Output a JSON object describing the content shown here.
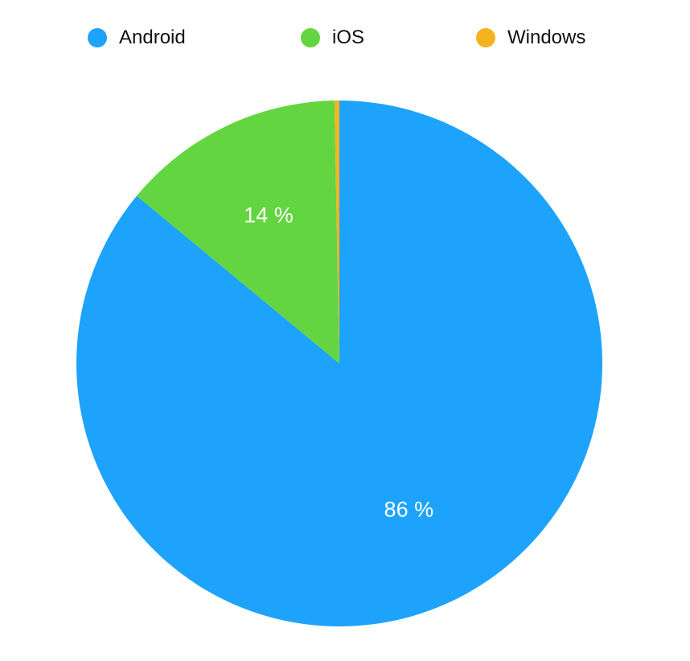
{
  "chart_data": {
    "type": "pie",
    "categories": [
      "Android",
      "iOS",
      "Windows"
    ],
    "values": [
      86,
      13.7,
      0.3
    ],
    "labels": [
      "86 %",
      "14 %",
      ""
    ],
    "colors": [
      "#1ea3fd",
      "#63d541",
      "#f4b31e"
    ],
    "legend_position": "top",
    "start": "12 o'clock",
    "direction": "clockwise"
  }
}
